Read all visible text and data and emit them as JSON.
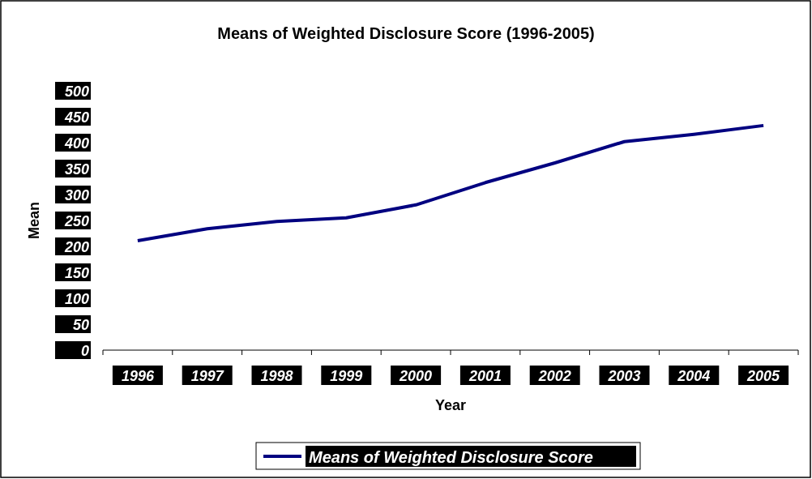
{
  "chart_data": {
    "type": "line",
    "title": "Means of Weighted Disclosure Score (1996-2005)",
    "xlabel": "Year",
    "ylabel": "Mean",
    "categories": [
      "1996",
      "1997",
      "1998",
      "1999",
      "2000",
      "2001",
      "2002",
      "2003",
      "2004",
      "2005"
    ],
    "series": [
      {
        "name": "Means of Weighted Disclosure Score",
        "color": "#000080",
        "values": [
          211,
          234,
          248,
          255,
          280,
          323,
          361,
          402,
          416,
          433
        ]
      }
    ],
    "ylim": [
      0,
      500
    ],
    "yticks": [
      0,
      50,
      100,
      150,
      200,
      250,
      300,
      350,
      400,
      450,
      500
    ],
    "grid": false,
    "legend": "bottom",
    "marker": "none",
    "line_style": "solid"
  }
}
